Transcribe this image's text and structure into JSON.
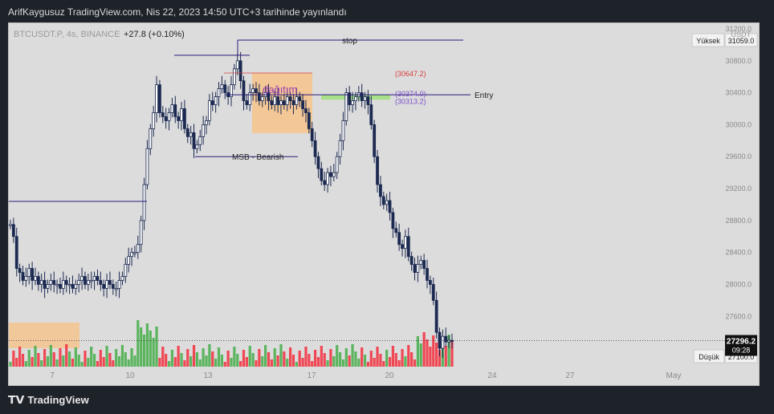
{
  "header": {
    "caption": "ArifKaygusuz TradingView.com, Nis 22, 2023 14:50 UTC+3 tarihinde yayınlandı"
  },
  "legend": {
    "symbol": "BTCUSDT.P, 4s, BINANCE",
    "change": "+27.8 (+0.10%)"
  },
  "footer": {
    "brand": "TradingView"
  },
  "chart_data": {
    "type": "candlestick",
    "currency": "USDT",
    "y_ticks": [
      27100,
      27600,
      28000,
      28400,
      28800,
      29200,
      29600,
      30000,
      30400,
      30800,
      31200
    ],
    "y_tick_labels": [
      "27100.0",
      "27600.0",
      "28000.0",
      "28400.0",
      "28800.0",
      "29200.0",
      "29600.0",
      "30000.0",
      "30400.0",
      "30800.0",
      "31200.0"
    ],
    "ylim": [
      26970,
      31270
    ],
    "x_tick_labels": [
      "7",
      "10",
      "13",
      "17",
      "20",
      "24",
      "27",
      "May"
    ],
    "last_price": {
      "value": 27296.2,
      "label": "27296.2",
      "countdown": "09:28"
    },
    "high_marker": {
      "label": "Yüksek",
      "value": 31059.0,
      "value_label": "31059.0"
    },
    "low_marker": {
      "label": "Düşük",
      "value": 27100.0,
      "value_label": "27100.0"
    },
    "annotations": {
      "stop": "stop",
      "entry": "Entry",
      "msb": "MSB - Bearish",
      "distribution": "dağıtım",
      "level_1": "(30647.2)",
      "level_2": "(30374.0)",
      "level_3": "(30313.2)"
    },
    "colors": {
      "up": "#4caf50",
      "down": "#f23645",
      "candle": "#1c2a52",
      "zone": "#f5c48e",
      "green_zone": "#a8e08a",
      "stop_line": "#2a1a7a",
      "red_level": "#d84040",
      "purple_level": "#7a50c8"
    },
    "volume_note": "volume bars red/green under candles"
  }
}
